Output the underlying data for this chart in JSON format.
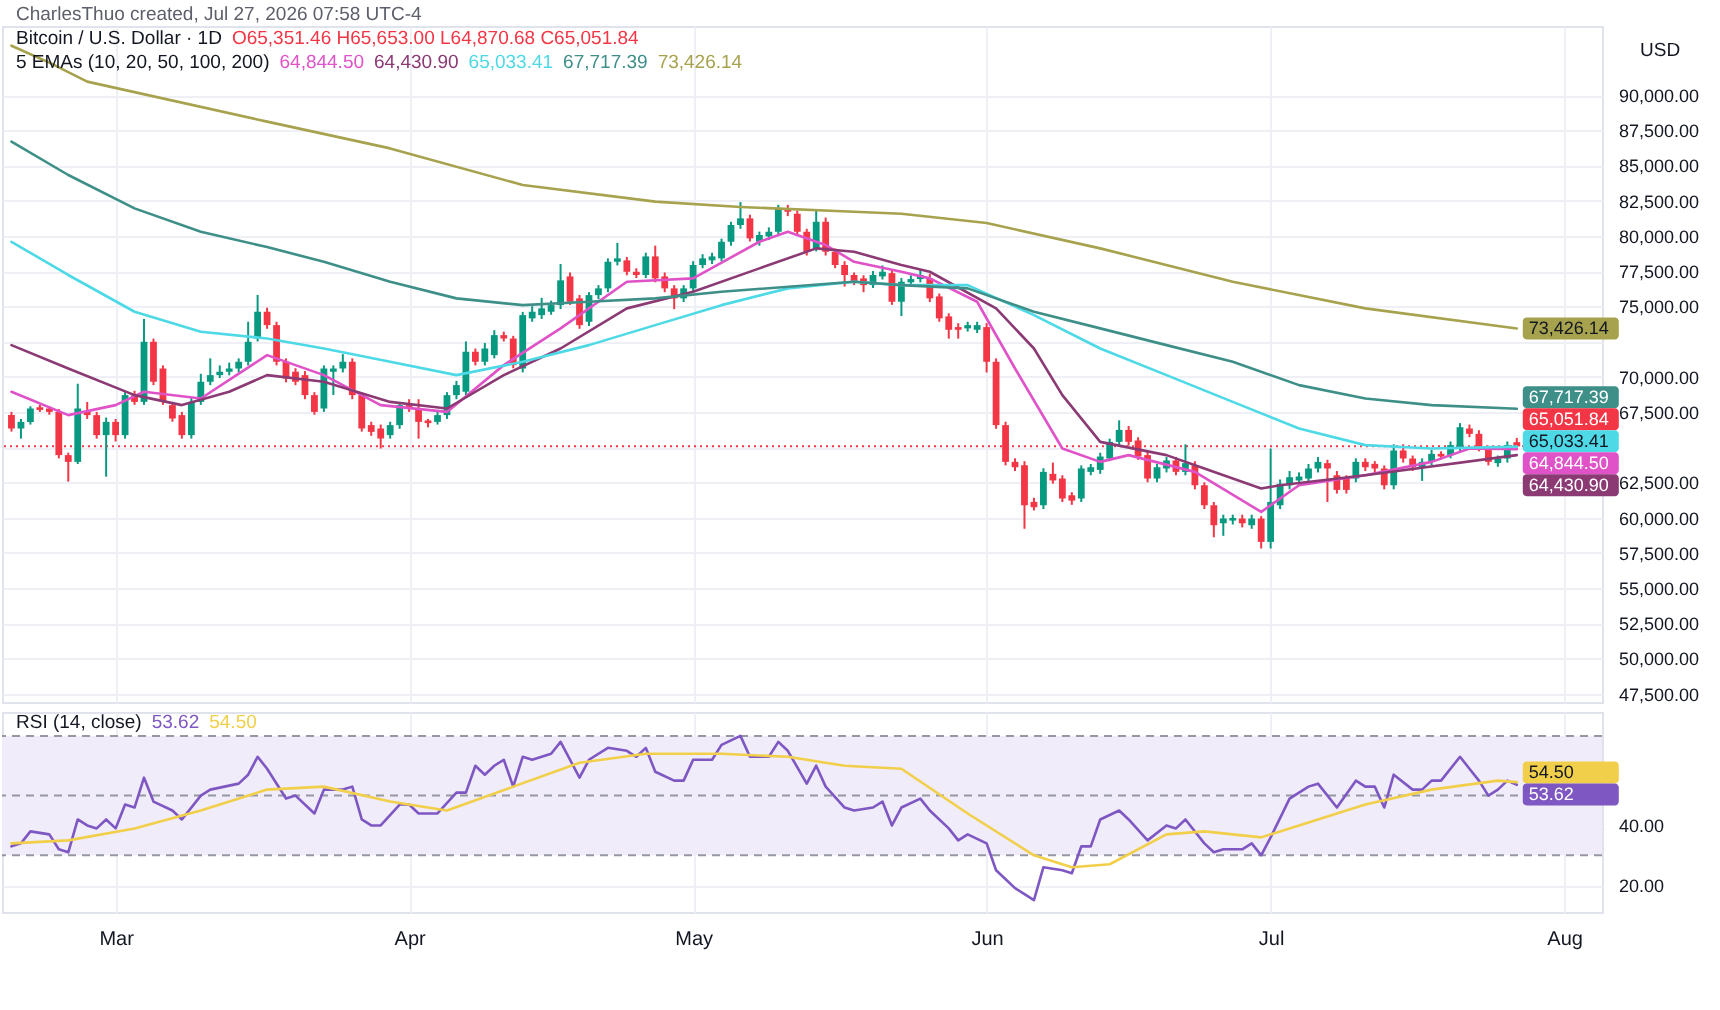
{
  "chart_data": [
    {
      "type": "candlestick",
      "title": "Bitcoin / U.S. Dollar · 1D",
      "ylabel": "USD",
      "annotations": [
        "CharlesThuo created, Jul 27, 2026 07:58 UTC-4",
        "O65,351.46 H65,653.00 L64,870.68 C65,051.84",
        "5 EMAs (10, 20, 50, 100, 200)"
      ],
      "x": [
        "2026-02-18",
        "2026-02-19",
        "2026-02-20",
        "2026-02-21",
        "2026-02-22",
        "2026-02-23",
        "2026-02-24",
        "2026-02-25",
        "2026-02-26",
        "2026-02-27",
        "2026-02-28",
        "2026-03-01",
        "2026-03-02",
        "2026-03-03",
        "2026-03-04",
        "2026-03-05",
        "2026-03-06",
        "2026-03-07",
        "2026-03-08",
        "2026-03-09",
        "2026-03-10",
        "2026-03-11",
        "2026-03-12",
        "2026-03-13",
        "2026-03-14",
        "2026-03-15",
        "2026-03-16",
        "2026-03-17",
        "2026-03-18",
        "2026-03-19",
        "2026-03-20",
        "2026-03-21",
        "2026-03-22",
        "2026-03-23",
        "2026-03-24",
        "2026-03-25",
        "2026-03-26",
        "2026-03-27",
        "2026-03-28",
        "2026-03-29",
        "2026-03-30",
        "2026-03-31",
        "2026-04-01",
        "2026-04-02",
        "2026-04-03",
        "2026-04-04",
        "2026-04-05",
        "2026-04-06",
        "2026-04-07",
        "2026-04-08",
        "2026-04-09",
        "2026-04-10",
        "2026-04-11",
        "2026-04-12",
        "2026-04-13",
        "2026-04-14",
        "2026-04-15",
        "2026-04-16",
        "2026-04-17",
        "2026-04-18",
        "2026-04-19",
        "2026-04-20",
        "2026-04-21",
        "2026-04-22",
        "2026-04-23",
        "2026-04-24",
        "2026-04-25",
        "2026-04-26",
        "2026-04-27",
        "2026-04-28",
        "2026-04-29",
        "2026-04-30",
        "2026-05-01",
        "2026-05-02",
        "2026-05-03",
        "2026-05-04",
        "2026-05-05",
        "2026-05-06",
        "2026-05-07",
        "2026-05-08",
        "2026-05-09",
        "2026-05-10",
        "2026-05-11",
        "2026-05-12",
        "2026-05-13",
        "2026-05-14",
        "2026-05-15",
        "2026-05-16",
        "2026-05-17",
        "2026-05-18",
        "2026-05-19",
        "2026-05-20",
        "2026-05-21",
        "2026-05-22",
        "2026-05-23",
        "2026-05-24",
        "2026-05-25",
        "2026-05-26",
        "2026-05-27",
        "2026-05-28",
        "2026-05-29",
        "2026-05-30",
        "2026-05-31",
        "2026-06-01",
        "2026-06-02",
        "2026-06-03",
        "2026-06-04",
        "2026-06-05",
        "2026-06-06",
        "2026-06-07",
        "2026-06-08",
        "2026-06-09",
        "2026-06-10",
        "2026-06-11",
        "2026-06-12",
        "2026-06-13",
        "2026-06-14",
        "2026-06-15",
        "2026-06-16",
        "2026-06-17",
        "2026-06-18",
        "2026-06-19",
        "2026-06-20",
        "2026-06-21",
        "2026-06-22",
        "2026-06-23",
        "2026-06-24",
        "2026-06-25",
        "2026-06-26",
        "2026-06-27",
        "2026-06-28",
        "2026-06-29",
        "2026-06-30",
        "2026-07-01",
        "2026-07-02",
        "2026-07-03",
        "2026-07-04",
        "2026-07-05",
        "2026-07-06",
        "2026-07-07",
        "2026-07-08",
        "2026-07-09",
        "2026-07-10",
        "2026-07-11",
        "2026-07-12",
        "2026-07-13",
        "2026-07-14",
        "2026-07-15",
        "2026-07-16",
        "2026-07-17",
        "2026-07-18",
        "2026-07-19",
        "2026-07-20",
        "2026-07-21",
        "2026-07-22",
        "2026-07-23",
        "2026-07-24",
        "2026-07-25",
        "2026-07-26",
        "2026-07-27"
      ],
      "ohlc": [
        [
          67270,
          67500,
          66100,
          66320
        ],
        [
          66320,
          67000,
          65600,
          66790
        ],
        [
          66790,
          67900,
          66600,
          67740
        ],
        [
          67830,
          68000,
          67500,
          67640
        ],
        [
          67740,
          67900,
          67300,
          67500
        ],
        [
          67500,
          67700,
          64200,
          64430
        ],
        [
          64430,
          64600,
          62550,
          63950
        ],
        [
          63950,
          69500,
          63800,
          67740
        ],
        [
          67500,
          68200,
          67000,
          67270
        ],
        [
          67270,
          67500,
          65600,
          65850
        ],
        [
          65850,
          67100,
          62900,
          66790
        ],
        [
          66790,
          67000,
          65400,
          65850
        ],
        [
          65850,
          68900,
          65600,
          68690
        ],
        [
          68690,
          69000,
          68000,
          68210
        ],
        [
          68210,
          74100,
          68000,
          72480
        ],
        [
          72480,
          72700,
          69400,
          69640
        ],
        [
          70580,
          70800,
          68000,
          68210
        ],
        [
          67980,
          68200,
          66800,
          67030
        ],
        [
          67270,
          67500,
          65600,
          65850
        ],
        [
          65850,
          68500,
          65600,
          68210
        ],
        [
          68210,
          70200,
          68000,
          69640
        ],
        [
          69640,
          71300,
          69400,
          70110
        ],
        [
          70110,
          70800,
          69900,
          70350
        ],
        [
          70350,
          71000,
          70100,
          70580
        ],
        [
          70580,
          71300,
          70300,
          71060
        ],
        [
          71060,
          73900,
          70800,
          72480
        ],
        [
          72710,
          75800,
          72500,
          74610
        ],
        [
          74610,
          74900,
          73400,
          73660
        ],
        [
          73660,
          73900,
          70800,
          71060
        ],
        [
          71060,
          71300,
          69600,
          69870
        ],
        [
          70350,
          70600,
          69400,
          69640
        ],
        [
          70110,
          70400,
          68400,
          68690
        ],
        [
          68690,
          68900,
          67300,
          67500
        ],
        [
          67740,
          70800,
          67500,
          70580
        ],
        [
          70350,
          70800,
          68700,
          70580
        ],
        [
          70580,
          71600,
          70300,
          71060
        ],
        [
          71060,
          71300,
          68400,
          68690
        ],
        [
          68690,
          68900,
          66100,
          66320
        ],
        [
          66560,
          66800,
          65800,
          66080
        ],
        [
          66320,
          66600,
          64900,
          65610
        ],
        [
          65850,
          66800,
          65600,
          66560
        ],
        [
          66560,
          68200,
          66300,
          67980
        ],
        [
          67980,
          68400,
          67500,
          67740
        ],
        [
          67740,
          68400,
          65600,
          66790
        ],
        [
          66890,
          67000,
          66400,
          66700
        ],
        [
          66790,
          67500,
          66600,
          67270
        ],
        [
          67270,
          68900,
          67000,
          68690
        ],
        [
          68690,
          69700,
          68400,
          69400
        ],
        [
          68930,
          72500,
          68700,
          71770
        ],
        [
          71770,
          72000,
          70800,
          71060
        ],
        [
          71060,
          72400,
          70800,
          72000
        ],
        [
          71530,
          73300,
          71300,
          72950
        ],
        [
          72950,
          73200,
          72500,
          72710
        ],
        [
          72710,
          72900,
          70600,
          70820
        ],
        [
          70580,
          74600,
          70300,
          74370
        ],
        [
          74140,
          75000,
          73900,
          74610
        ],
        [
          74370,
          75600,
          74100,
          74850
        ],
        [
          74610,
          75400,
          74400,
          75080
        ],
        [
          75080,
          78000,
          74800,
          76840
        ],
        [
          77120,
          77400,
          75100,
          75320
        ],
        [
          75560,
          75800,
          73400,
          73660
        ],
        [
          73900,
          76000,
          73600,
          75790
        ],
        [
          75790,
          76500,
          75500,
          76270
        ],
        [
          76270,
          78400,
          76000,
          78160
        ],
        [
          78160,
          79500,
          77900,
          78400
        ],
        [
          78260,
          78500,
          77200,
          77450
        ],
        [
          77450,
          77700,
          77000,
          77220
        ],
        [
          77220,
          78800,
          77000,
          78540
        ],
        [
          78540,
          79300,
          76700,
          76980
        ],
        [
          77120,
          77400,
          76000,
          76270
        ],
        [
          76270,
          76500,
          74800,
          75560
        ],
        [
          75560,
          76500,
          75300,
          76270
        ],
        [
          76270,
          78200,
          76000,
          77930
        ],
        [
          77930,
          78700,
          77700,
          78400
        ],
        [
          78260,
          78800,
          78000,
          78540
        ],
        [
          78400,
          79800,
          78200,
          79580
        ],
        [
          79580,
          81000,
          79300,
          80770
        ],
        [
          80770,
          82400,
          80500,
          81240
        ],
        [
          81240,
          81500,
          79600,
          79820
        ],
        [
          79580,
          80300,
          79300,
          80060
        ],
        [
          79960,
          80600,
          79700,
          80290
        ],
        [
          80290,
          82200,
          80000,
          81950
        ],
        [
          81950,
          82200,
          81400,
          81710
        ],
        [
          81570,
          81800,
          80000,
          80290
        ],
        [
          80290,
          80500,
          78600,
          78870
        ],
        [
          79110,
          81900,
          78900,
          81000
        ],
        [
          81000,
          81300,
          78600,
          78870
        ],
        [
          78870,
          79100,
          77700,
          77930
        ],
        [
          77930,
          78200,
          76400,
          77220
        ],
        [
          77220,
          77400,
          76500,
          76740
        ],
        [
          76980,
          77200,
          76000,
          76500
        ],
        [
          76500,
          77500,
          76300,
          77220
        ],
        [
          77120,
          77900,
          76900,
          77450
        ],
        [
          77350,
          77600,
          75100,
          75320
        ],
        [
          75320,
          77000,
          74300,
          76740
        ],
        [
          76700,
          77200,
          76500,
          76930
        ],
        [
          76930,
          77600,
          76700,
          77220
        ],
        [
          76980,
          77300,
          75300,
          75560
        ],
        [
          75700,
          75900,
          73900,
          74140
        ],
        [
          74280,
          74500,
          72700,
          73330
        ],
        [
          73520,
          73800,
          72700,
          73330
        ],
        [
          73430,
          73900,
          73200,
          73660
        ],
        [
          73330,
          73900,
          73100,
          73660
        ],
        [
          73520,
          73800,
          70300,
          71060
        ],
        [
          71060,
          71300,
          66300,
          66560
        ],
        [
          66560,
          66800,
          63700,
          63950
        ],
        [
          63950,
          64200,
          63300,
          63570
        ],
        [
          63710,
          64000,
          59200,
          60870
        ],
        [
          61110,
          61400,
          60500,
          60730
        ],
        [
          60870,
          63500,
          60600,
          63240
        ],
        [
          63100,
          63900,
          62400,
          62630
        ],
        [
          62770,
          63000,
          61100,
          61350
        ],
        [
          61580,
          61800,
          60900,
          61200
        ],
        [
          61350,
          63700,
          61100,
          63480
        ],
        [
          63240,
          63800,
          63000,
          63570
        ],
        [
          63380,
          64600,
          63100,
          64330
        ],
        [
          64190,
          65600,
          64000,
          65370
        ],
        [
          65370,
          66900,
          65100,
          66220
        ],
        [
          66220,
          66500,
          65100,
          65370
        ],
        [
          65470,
          65700,
          64100,
          64330
        ],
        [
          64430,
          64700,
          62500,
          62770
        ],
        [
          62770,
          63800,
          62500,
          63570
        ],
        [
          63480,
          64300,
          63200,
          64050
        ],
        [
          64050,
          64300,
          63000,
          63240
        ],
        [
          63240,
          65200,
          63000,
          63860
        ],
        [
          63710,
          64000,
          62000,
          62290
        ],
        [
          62290,
          62500,
          60600,
          60870
        ],
        [
          60870,
          61100,
          58600,
          59450
        ],
        [
          59590,
          60200,
          58700,
          59930
        ],
        [
          59780,
          60200,
          59500,
          59970
        ],
        [
          59930,
          60200,
          59300,
          59590
        ],
        [
          59450,
          60200,
          59200,
          59930
        ],
        [
          59930,
          60100,
          57800,
          58270
        ],
        [
          58270,
          64900,
          57800,
          61110
        ],
        [
          60870,
          62700,
          60600,
          62390
        ],
        [
          62290,
          63300,
          62000,
          62860
        ],
        [
          62630,
          63200,
          62400,
          62910
        ],
        [
          62770,
          63800,
          62500,
          63480
        ],
        [
          63480,
          64300,
          63200,
          63950
        ],
        [
          63860,
          64100,
          61100,
          63480
        ],
        [
          63000,
          63300,
          61700,
          61960
        ],
        [
          62770,
          63000,
          61700,
          61960
        ],
        [
          62770,
          64200,
          62500,
          63950
        ],
        [
          63950,
          64200,
          63300,
          63570
        ],
        [
          63810,
          64000,
          63200,
          63480
        ],
        [
          63480,
          63700,
          62000,
          62290
        ],
        [
          62290,
          65200,
          62000,
          64760
        ],
        [
          64760,
          65200,
          63900,
          64190
        ],
        [
          64190,
          64400,
          63300,
          63570
        ],
        [
          63570,
          64200,
          62600,
          63950
        ],
        [
          63950,
          64800,
          63700,
          64520
        ],
        [
          64520,
          64700,
          64100,
          64330
        ],
        [
          64430,
          65400,
          64200,
          65140
        ],
        [
          64990,
          66700,
          64700,
          66410
        ],
        [
          66320,
          66600,
          65700,
          65940
        ],
        [
          65940,
          66200,
          64700,
          64990
        ],
        [
          64900,
          65100,
          63700,
          63950
        ],
        [
          63860,
          64400,
          63600,
          64190
        ],
        [
          64190,
          65400,
          63900,
          65140
        ],
        [
          65351.46,
          65653,
          64870.68,
          65051.84
        ]
      ],
      "series": [
        {
          "type": "line",
          "color": "#e052c8",
          "x": [
            "2026-02-18",
            "2026-02-24",
            "2026-03-01",
            "2026-03-04",
            "2026-03-10",
            "2026-03-17",
            "2026-03-23",
            "2026-03-29",
            "2026-04-05",
            "2026-04-11",
            "2026-04-17",
            "2026-04-24",
            "2026-05-01",
            "2026-05-08",
            "2026-05-11",
            "2026-05-15",
            "2026-05-18",
            "2026-05-23",
            "2026-05-26",
            "2026-05-31",
            "2026-06-04",
            "2026-06-09",
            "2026-06-13",
            "2026-06-16",
            "2026-06-23",
            "2026-06-30",
            "2026-07-04",
            "2026-07-11",
            "2026-07-18",
            "2026-07-22",
            "2026-07-27"
          ],
          "values": [
            68930,
            67270,
            67980,
            68930,
            68450,
            71530,
            70110,
            67980,
            67500,
            70820,
            73430,
            76740,
            76980,
            79580,
            80290,
            79350,
            78160,
            77450,
            76980,
            75320,
            70580,
            64900,
            63950,
            64430,
            63240,
            60400,
            62290,
            63000,
            63950,
            64900,
            64844.5
          ],
          "value_labels": [
            null,
            null,
            null,
            null,
            null,
            null,
            null,
            null,
            null,
            null,
            null,
            null,
            null,
            null,
            null,
            null,
            null,
            null,
            null,
            null,
            null,
            null,
            null,
            null,
            null,
            null,
            null,
            null,
            null,
            null,
            "64,844.50"
          ]
        },
        {
          "type": "line",
          "color": "#8b3a74",
          "x": [
            "2026-02-18",
            "2026-02-24",
            "2026-03-03",
            "2026-03-08",
            "2026-03-13",
            "2026-03-17",
            "2026-03-23",
            "2026-03-30",
            "2026-04-05",
            "2026-04-11",
            "2026-04-17",
            "2026-04-24",
            "2026-05-01",
            "2026-05-08",
            "2026-05-14",
            "2026-05-18",
            "2026-05-23",
            "2026-05-26",
            "2026-06-02",
            "2026-06-06",
            "2026-06-09",
            "2026-06-13",
            "2026-06-20",
            "2026-06-24",
            "2026-06-30",
            "2026-07-02",
            "2026-07-11",
            "2026-07-27"
          ],
          "values": [
            72240,
            70580,
            68690,
            67980,
            68930,
            70110,
            69640,
            68210,
            67740,
            70110,
            72000,
            74850,
            76030,
            77690,
            79110,
            78870,
            77930,
            77450,
            74850,
            72000,
            68690,
            65370,
            64430,
            63480,
            62060,
            62290,
            63000,
            64430.9
          ],
          "value_labels": [
            null,
            null,
            null,
            null,
            null,
            null,
            null,
            null,
            null,
            null,
            null,
            null,
            null,
            null,
            null,
            null,
            null,
            null,
            null,
            null,
            null,
            null,
            null,
            null,
            null,
            null,
            null,
            "64,430.90"
          ]
        },
        {
          "type": "line",
          "color": "#4dd9e6",
          "x": [
            "2026-02-18",
            "2026-02-24",
            "2026-03-03",
            "2026-03-10",
            "2026-03-17",
            "2026-03-23",
            "2026-03-30",
            "2026-04-06",
            "2026-04-13",
            "2026-04-20",
            "2026-04-27",
            "2026-05-04",
            "2026-05-11",
            "2026-05-18",
            "2026-05-23",
            "2026-05-30",
            "2026-06-06",
            "2026-06-13",
            "2026-06-20",
            "2026-06-27",
            "2026-07-04",
            "2026-07-11",
            "2026-07-18",
            "2026-07-27"
          ],
          "values": [
            79580,
            77220,
            74610,
            73190,
            72710,
            72000,
            71060,
            70110,
            71060,
            72240,
            73660,
            75080,
            76270,
            76740,
            76500,
            76500,
            74370,
            72000,
            70110,
            68210,
            66320,
            65140,
            64900,
            65033.41
          ],
          "value_labels": [
            null,
            null,
            null,
            null,
            null,
            null,
            null,
            null,
            null,
            null,
            null,
            null,
            null,
            null,
            null,
            null,
            null,
            null,
            null,
            null,
            null,
            null,
            null,
            "65,033.41"
          ]
        },
        {
          "type": "line",
          "color": "#3d8f88",
          "x": [
            "2026-02-18",
            "2026-02-24",
            "2026-03-03",
            "2026-03-10",
            "2026-03-17",
            "2026-03-23",
            "2026-03-30",
            "2026-04-06",
            "2026-04-13",
            "2026-04-20",
            "2026-04-27",
            "2026-05-04",
            "2026-05-18",
            "2026-05-23",
            "2026-05-30",
            "2026-06-06",
            "2026-06-13",
            "2026-06-20",
            "2026-06-27",
            "2026-07-04",
            "2026-07-11",
            "2026-07-18",
            "2026-07-27"
          ],
          "values": [
            86690,
            84320,
            81950,
            80290,
            79200,
            78160,
            76740,
            75560,
            75080,
            75320,
            75560,
            76030,
            76740,
            76500,
            76270,
            74610,
            73430,
            72240,
            71060,
            69400,
            68450,
            67980,
            67717.39
          ],
          "value_labels": [
            null,
            null,
            null,
            null,
            null,
            null,
            null,
            null,
            null,
            null,
            null,
            null,
            null,
            null,
            null,
            null,
            null,
            null,
            null,
            null,
            null,
            null,
            "67,717.39"
          ]
        },
        {
          "type": "line",
          "color": "#a6a24e",
          "x": [
            "2026-02-18",
            "2026-02-22",
            "2026-02-26",
            "2026-03-17",
            "2026-03-30",
            "2026-04-13",
            "2026-04-27",
            "2026-05-06",
            "2026-05-18",
            "2026-05-23",
            "2026-06-01",
            "2026-06-13",
            "2026-06-27",
            "2026-07-11",
            "2026-07-27"
          ],
          "values": [
            93500,
            92300,
            90950,
            88110,
            86210,
            83610,
            82430,
            82050,
            81710,
            81570,
            80910,
            79110,
            76740,
            74850,
            73426.14
          ],
          "value_labels": [
            null,
            null,
            null,
            null,
            null,
            null,
            null,
            null,
            null,
            null,
            null,
            null,
            null,
            null,
            "73,426.14"
          ]
        }
      ],
      "ref_lines": [
        {
          "axis": "y",
          "value": 65051.84,
          "label": "65,051.84",
          "color": "#f23645",
          "line_style": "dotted"
        }
      ],
      "xlim": [
        "2026-02-17",
        "2026-08-05"
      ],
      "xticks": [
        {
          "value": "2026-03-01",
          "label": null
        },
        {
          "value": "2026-04-01",
          "label": null
        },
        {
          "value": "2026-05-01",
          "label": null
        },
        {
          "value": "2026-06-01",
          "label": null
        },
        {
          "value": "2026-07-01",
          "label": null
        },
        {
          "value": "2026-08-01",
          "label": null
        }
      ],
      "ylim": [
        46900,
        94900
      ],
      "yticks": [
        {
          "value": 47500,
          "label": "47,500.00"
        },
        {
          "value": 50000,
          "label": "50,000.00"
        },
        {
          "value": 52500,
          "label": "52,500.00"
        },
        {
          "value": 55000,
          "label": "55,000.00"
        },
        {
          "value": 57500,
          "label": "57,500.00"
        },
        {
          "value": 60000,
          "label": "60,000.00"
        },
        {
          "value": 62500,
          "label": "62,500.00"
        },
        {
          "value": 65000,
          "label": null
        },
        {
          "value": 67500,
          "label": "67,500.00"
        },
        {
          "value": 70000,
          "label": "70,000.00"
        },
        {
          "value": 72500,
          "label": null
        },
        {
          "value": 75000,
          "label": "75,000.00"
        },
        {
          "value": 77500,
          "label": "77,500.00"
        },
        {
          "value": 80000,
          "label": "80,000.00"
        },
        {
          "value": 82500,
          "label": "82,500.00"
        },
        {
          "value": 85000,
          "label": "85,000.00"
        },
        {
          "value": 87500,
          "label": "87,500.00"
        },
        {
          "value": 90000,
          "label": "90,000.00"
        }
      ],
      "tick_labels": "y",
      "grid": true
    },
    {
      "type": "line",
      "title": "RSI (14, close)",
      "series": [
        {
          "color": "#7e57c2",
          "x": [
            "2026-02-18",
            "2026-02-19",
            "2026-02-20",
            "2026-02-22",
            "2026-02-23",
            "2026-02-24",
            "2026-02-25",
            "2026-02-26",
            "2026-02-27",
            "2026-02-28",
            "2026-03-01",
            "2026-03-02",
            "2026-03-03",
            "2026-03-04",
            "2026-03-05",
            "2026-03-07",
            "2026-03-08",
            "2026-03-10",
            "2026-03-11",
            "2026-03-14",
            "2026-03-15",
            "2026-03-16",
            "2026-03-17",
            "2026-03-19",
            "2026-03-20",
            "2026-03-22",
            "2026-03-23",
            "2026-03-25",
            "2026-03-26",
            "2026-03-27",
            "2026-03-28",
            "2026-03-29",
            "2026-03-31",
            "2026-04-01",
            "2026-04-02",
            "2026-04-04",
            "2026-04-06",
            "2026-04-07",
            "2026-04-08",
            "2026-04-09",
            "2026-04-10",
            "2026-04-11",
            "2026-04-12",
            "2026-04-13",
            "2026-04-14",
            "2026-04-16",
            "2026-04-17",
            "2026-04-19",
            "2026-04-20",
            "2026-04-22",
            "2026-04-24",
            "2026-04-25",
            "2026-04-26",
            "2026-04-27",
            "2026-04-29",
            "2026-04-30",
            "2026-05-01",
            "2026-05-03",
            "2026-05-04",
            "2026-05-06",
            "2026-05-07",
            "2026-05-09",
            "2026-05-10",
            "2026-05-11",
            "2026-05-13",
            "2026-05-14",
            "2026-05-15",
            "2026-05-17",
            "2026-05-18",
            "2026-05-20",
            "2026-05-21",
            "2026-05-22",
            "2026-05-23",
            "2026-05-25",
            "2026-05-26",
            "2026-05-28",
            "2026-05-29",
            "2026-05-30",
            "2026-06-01",
            "2026-06-02",
            "2026-06-04",
            "2026-06-05",
            "2026-06-06",
            "2026-06-07",
            "2026-06-09",
            "2026-06-10",
            "2026-06-11",
            "2026-06-12",
            "2026-06-13",
            "2026-06-15",
            "2026-06-16",
            "2026-06-18",
            "2026-06-20",
            "2026-06-21",
            "2026-06-22",
            "2026-06-24",
            "2026-06-25",
            "2026-06-26",
            "2026-06-28",
            "2026-06-29",
            "2026-06-30",
            "2026-07-01",
            "2026-07-03",
            "2026-07-05",
            "2026-07-06",
            "2026-07-08",
            "2026-07-10",
            "2026-07-11",
            "2026-07-12",
            "2026-07-13",
            "2026-07-14",
            "2026-07-16",
            "2026-07-17",
            "2026-07-18",
            "2026-07-19",
            "2026-07-21",
            "2026-07-22",
            "2026-07-23",
            "2026-07-24",
            "2026-07-25",
            "2026-07-26",
            "2026-07-27"
          ],
          "values": [
            33,
            34,
            38,
            37,
            32,
            31,
            42,
            40,
            39,
            42,
            39,
            47,
            46,
            56,
            48,
            45,
            42,
            50,
            52,
            54,
            57,
            63,
            59,
            49,
            50,
            44,
            52,
            52,
            53,
            42,
            40,
            40,
            47,
            47,
            44,
            44,
            51,
            51,
            60,
            57,
            60,
            62,
            53,
            63,
            62,
            64,
            68,
            56,
            62,
            66,
            65,
            63,
            66,
            58,
            55,
            55,
            62,
            62,
            67,
            70,
            63,
            63,
            68,
            65,
            54,
            60,
            53,
            46,
            45,
            46,
            48,
            40,
            46,
            49,
            45,
            39,
            35,
            37,
            34,
            25,
            19,
            17,
            15,
            26,
            25,
            24,
            33,
            33,
            42,
            45,
            42,
            35,
            40,
            39,
            42,
            34,
            31,
            32,
            32,
            34,
            30,
            36,
            49,
            53,
            54,
            46,
            55,
            53,
            53,
            46,
            57,
            52,
            52,
            55,
            55,
            63,
            59,
            55,
            50,
            52,
            55,
            53.62
          ],
          "value_labels": [
            null,
            null,
            null,
            null,
            null,
            null,
            null,
            null,
            null,
            null,
            null,
            null,
            null,
            null,
            null,
            null,
            null,
            null,
            null,
            null,
            null,
            null,
            null,
            null,
            null,
            null,
            null,
            null,
            null,
            null,
            null,
            null,
            null,
            null,
            null,
            null,
            null,
            null,
            null,
            null,
            null,
            null,
            null,
            null,
            null,
            null,
            null,
            null,
            null,
            null,
            null,
            null,
            null,
            null,
            null,
            null,
            null,
            null,
            null,
            null,
            null,
            null,
            null,
            null,
            null,
            null,
            null,
            null,
            null,
            null,
            null,
            null,
            null,
            null,
            null,
            null,
            null,
            null,
            null,
            null,
            null,
            null,
            null,
            null,
            null,
            null,
            null,
            null,
            null,
            null,
            null,
            null,
            null,
            null,
            null,
            null,
            null,
            null,
            null,
            null,
            null,
            null,
            null,
            null,
            null,
            null,
            null,
            null,
            null,
            null,
            null,
            null,
            null,
            null,
            null,
            null,
            null,
            null,
            null,
            null,
            null,
            "53.62"
          ]
        },
        {
          "color": "#f2cf4a",
          "x": [
            "2026-02-18",
            "2026-02-24",
            "2026-03-03",
            "2026-03-10",
            "2026-03-17",
            "2026-03-23",
            "2026-03-30",
            "2026-04-05",
            "2026-04-12",
            "2026-04-19",
            "2026-04-26",
            "2026-05-04",
            "2026-05-11",
            "2026-05-17",
            "2026-05-23",
            "2026-05-30",
            "2026-06-06",
            "2026-06-10",
            "2026-06-14",
            "2026-06-20",
            "2026-06-24",
            "2026-06-30",
            "2026-07-04",
            "2026-07-11",
            "2026-07-18",
            "2026-07-25",
            "2026-07-27"
          ],
          "values": [
            34,
            35,
            39,
            45,
            52,
            53,
            48,
            45,
            53,
            61,
            64,
            64,
            63,
            60,
            59,
            44,
            30,
            26,
            27,
            37,
            38,
            36,
            40,
            47,
            52,
            55,
            54.5
          ],
          "value_labels": [
            null,
            null,
            null,
            null,
            null,
            null,
            null,
            null,
            null,
            null,
            null,
            null,
            null,
            null,
            null,
            null,
            null,
            null,
            null,
            null,
            null,
            null,
            null,
            null,
            null,
            null,
            "54.50"
          ]
        }
      ],
      "ref_lines": [
        {
          "axis": "y",
          "value": 70,
          "color": "#9598a1",
          "line_style": "dashed"
        },
        {
          "axis": "y",
          "value": 50,
          "color": "#9598a1",
          "line_style": "dashed"
        },
        {
          "axis": "y",
          "value": 30,
          "color": "#9598a1",
          "line_style": "dashed"
        }
      ],
      "bands": [
        {
          "axis": "y",
          "from": 30,
          "to": 70,
          "color": "#f0ecf9"
        }
      ],
      "xlim": [
        "2026-02-17",
        "2026-08-05"
      ],
      "xticks": [
        {
          "value": "2026-03-01",
          "label": "Mar"
        },
        {
          "value": "2026-04-01",
          "label": "Apr"
        },
        {
          "value": "2026-05-01",
          "label": "May"
        },
        {
          "value": "2026-06-01",
          "label": "Jun"
        },
        {
          "value": "2026-07-01",
          "label": "Jul"
        },
        {
          "value": "2026-08-01",
          "label": "Aug"
        }
      ],
      "ylim": [
        11,
        78
      ],
      "yticks": [
        {
          "value": 20,
          "label": "20.00"
        },
        {
          "value": 40,
          "label": "40.00"
        }
      ],
      "grid": true
    }
  ]
}
